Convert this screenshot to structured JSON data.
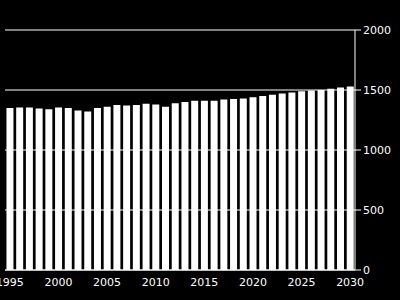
{
  "chart_data": {
    "type": "bar",
    "categories": [
      "1995",
      null,
      null,
      null,
      null,
      "2000",
      null,
      null,
      null,
      null,
      "2005",
      null,
      null,
      null,
      null,
      "2010",
      null,
      null,
      null,
      null,
      "2015",
      null,
      null,
      null,
      null,
      "2020",
      null,
      null,
      null,
      null,
      "2025",
      null,
      null,
      null,
      null,
      "2030"
    ],
    "values": [
      1350,
      1355,
      1355,
      1345,
      1340,
      1355,
      1350,
      1330,
      1320,
      1350,
      1360,
      1375,
      1370,
      1375,
      1385,
      1380,
      1360,
      1390,
      1400,
      1410,
      1410,
      1410,
      1420,
      1425,
      1430,
      1440,
      1450,
      1460,
      1470,
      1480,
      1490,
      1495,
      1500,
      1510,
      1520,
      1530
    ],
    "color": "#ffffff",
    "ylim": [
      0,
      2000
    ],
    "yticks": [
      0,
      500,
      1000,
      1500,
      2000
    ],
    "grid": true
  }
}
